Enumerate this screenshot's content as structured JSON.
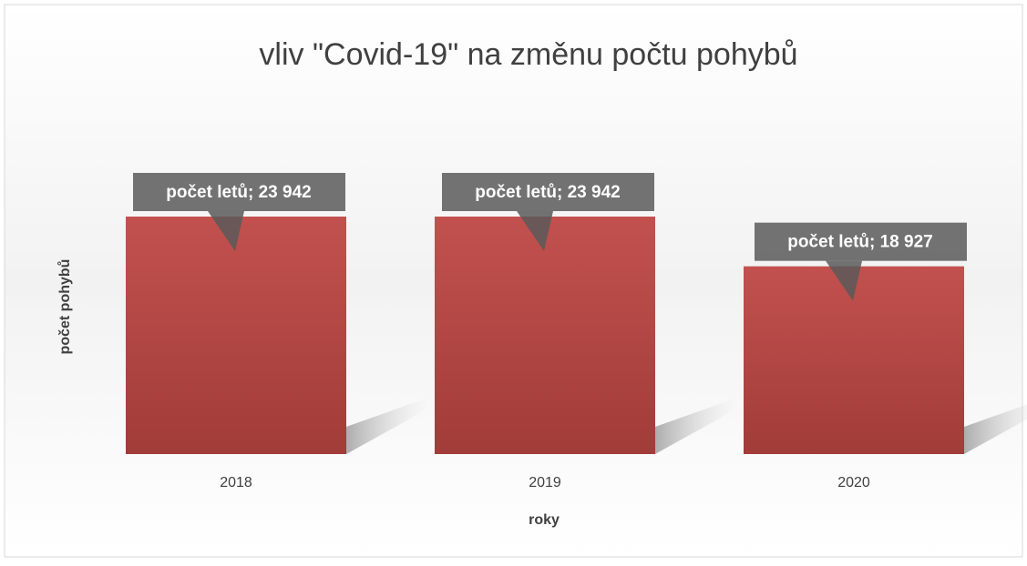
{
  "chart_data": {
    "type": "bar",
    "title": "vliv \"Covid-19\" na změnu počtu pohybů",
    "x_label": "roky",
    "y_label": "počet pohybů",
    "categories": [
      "2018",
      "2019",
      "2020"
    ],
    "series": [
      {
        "name": "počet letů",
        "color": "#c0504d",
        "values": [
          23942,
          23942,
          18927
        ],
        "value_labels": [
          "počet letů; 23 942",
          "počet letů; 23 942",
          "počet letů; 18 927"
        ]
      }
    ]
  }
}
